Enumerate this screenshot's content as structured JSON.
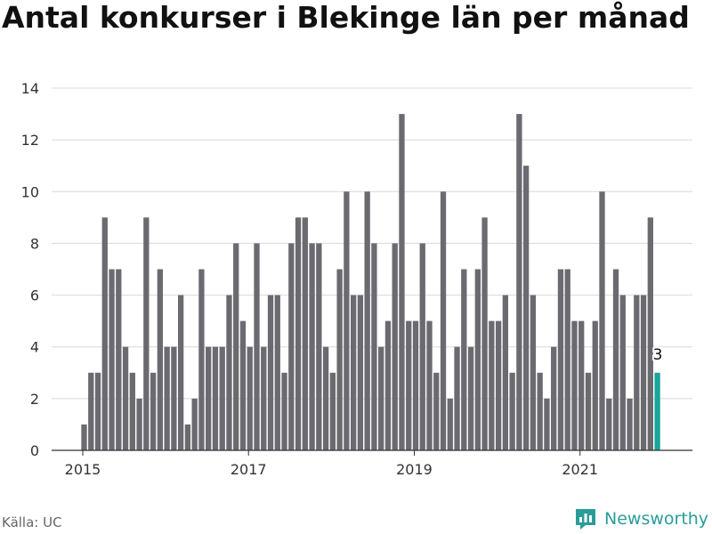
{
  "title": "Antal konkurser i Blekinge län per månad",
  "source": "Källa: UC",
  "brand": {
    "name": "Newsworthy",
    "icon": "newsworthy-logo-icon",
    "color": "#2a9d9a"
  },
  "colors": {
    "bar": "#6b6a70",
    "highlight": "#1aa59a",
    "grid": "#d8d8d8",
    "axis": "#333333"
  },
  "chart_data": {
    "type": "bar",
    "x_start": "2015-01",
    "x_ticks": [
      {
        "label": "2015",
        "month": "2015-01"
      },
      {
        "label": "2017",
        "month": "2017-01"
      },
      {
        "label": "2019",
        "month": "2019-01"
      },
      {
        "label": "2021",
        "month": "2021-01"
      }
    ],
    "values": [
      1,
      3,
      3,
      9,
      7,
      7,
      4,
      3,
      2,
      9,
      3,
      7,
      4,
      4,
      6,
      1,
      2,
      7,
      4,
      4,
      4,
      6,
      8,
      5,
      4,
      8,
      4,
      6,
      6,
      3,
      8,
      9,
      9,
      8,
      8,
      4,
      3,
      7,
      10,
      6,
      6,
      10,
      8,
      4,
      5,
      8,
      13,
      5,
      5,
      8,
      5,
      3,
      10,
      2,
      4,
      7,
      4,
      7,
      9,
      5,
      5,
      6,
      3,
      13,
      11,
      6,
      3,
      2,
      4,
      7,
      7,
      5,
      5,
      3,
      5,
      10,
      2,
      7,
      6,
      2,
      6,
      6,
      9,
      3
    ],
    "highlight_last": true,
    "last_value_label": "3",
    "yticks": [
      0,
      2,
      4,
      6,
      8,
      10,
      12,
      14
    ],
    "ylim": [
      0,
      14
    ],
    "grid": true,
    "xlabel": "",
    "ylabel": ""
  }
}
